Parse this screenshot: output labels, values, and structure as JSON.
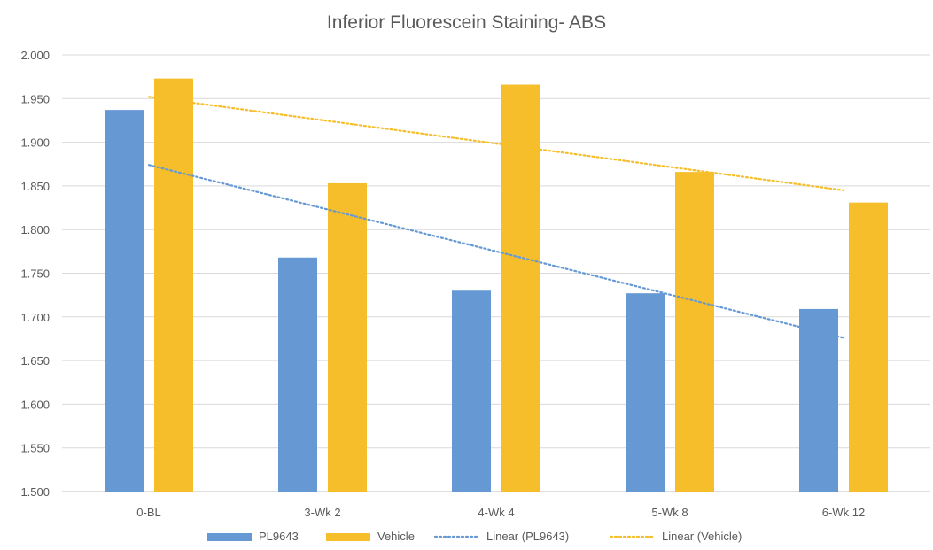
{
  "chart_data": {
    "type": "bar",
    "title": "Inferior Fluorescein Staining- ABS",
    "xlabel": "",
    "ylabel": "",
    "categories": [
      "0-BL",
      "3-Wk 2",
      "4-Wk 4",
      "5-Wk 8",
      "6-Wk 12"
    ],
    "series": [
      {
        "name": "PL9643",
        "color": "#6699D4",
        "values": [
          1.937,
          1.768,
          1.73,
          1.727,
          1.709
        ]
      },
      {
        "name": "Vehicle",
        "color": "#F6BE2A",
        "values": [
          1.973,
          1.853,
          1.966,
          1.866,
          1.831
        ]
      }
    ],
    "trendlines": [
      {
        "name": "Linear (PL9643)",
        "color": "#6699D4",
        "style": "dotted",
        "start": 1.874,
        "end": 1.676
      },
      {
        "name": "Linear (Vehicle)",
        "color": "#F6BE2A",
        "style": "dotted",
        "start": 1.952,
        "end": 1.845
      }
    ],
    "ylim": [
      1.5,
      2.0
    ],
    "yticks": [
      "1.500",
      "1.550",
      "1.600",
      "1.650",
      "1.700",
      "1.750",
      "1.800",
      "1.850",
      "1.900",
      "1.950",
      "2.000"
    ],
    "grid": true,
    "legend_position": "bottom"
  }
}
